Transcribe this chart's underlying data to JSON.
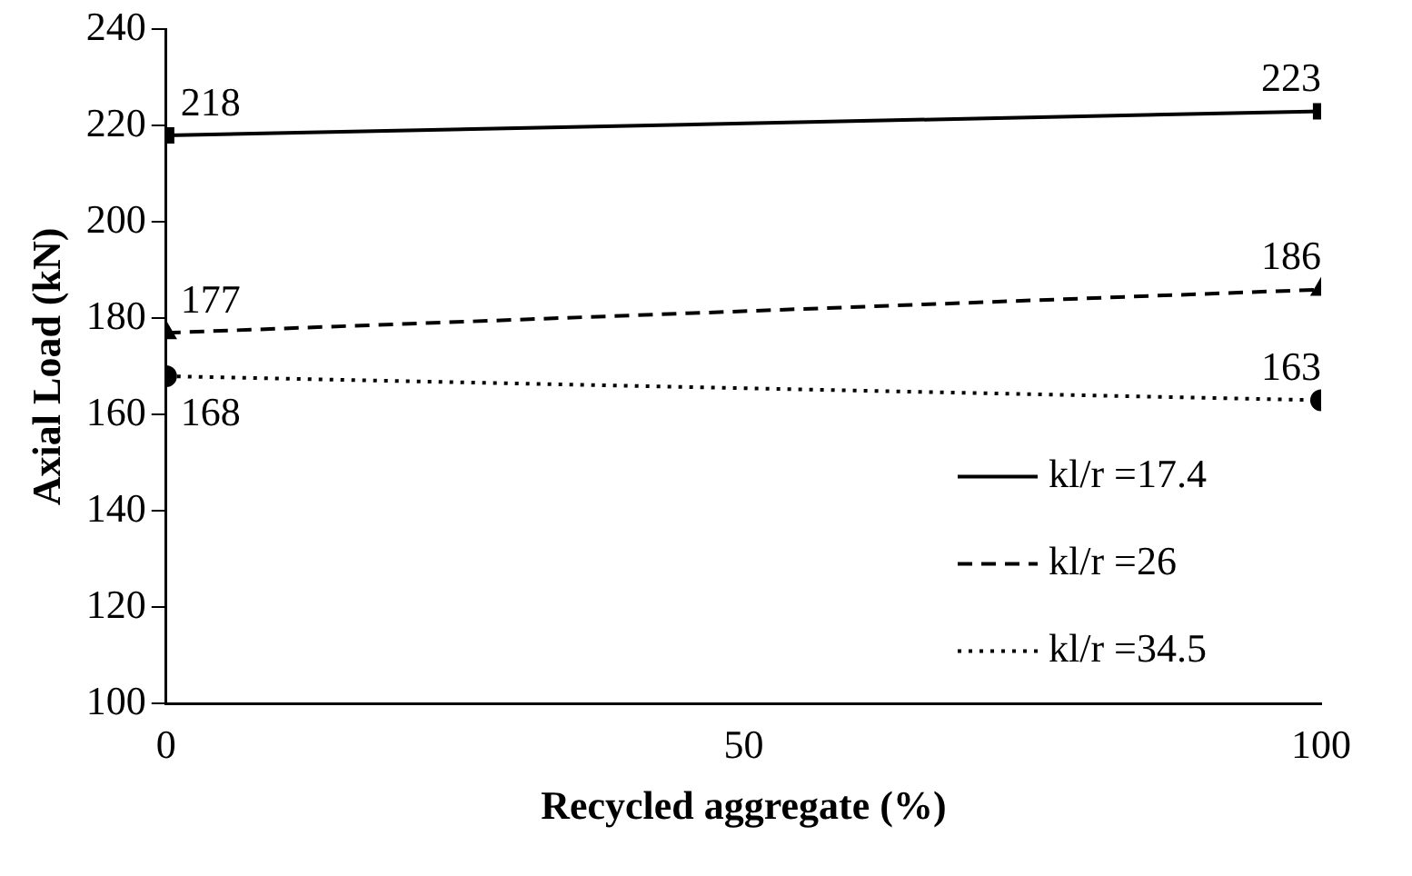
{
  "chart_data": {
    "type": "line",
    "xlabel": "Recycled aggregate (%)",
    "ylabel": "Axial Load (kN)",
    "x": [
      0,
      100
    ],
    "xlim": [
      0,
      100
    ],
    "xticks": [
      0,
      50,
      100
    ],
    "ylim": [
      100,
      240
    ],
    "yticks": [
      100,
      120,
      140,
      160,
      180,
      200,
      220,
      240
    ],
    "grid": false,
    "legend": "bottom right",
    "data_labels": true,
    "series": [
      {
        "name": "kl/r =17.4",
        "color": "#000000",
        "values": [
          218,
          223
        ],
        "marker": "square",
        "line_style": "solid"
      },
      {
        "name": "kl/r =26",
        "color": "#000000",
        "values": [
          177,
          186
        ],
        "marker": "triangle",
        "line_style": "dashed"
      },
      {
        "name": "kl/r =34.5",
        "color": "#000000",
        "values": [
          168,
          163
        ],
        "marker": "circle",
        "line_style": "dotted"
      }
    ]
  }
}
